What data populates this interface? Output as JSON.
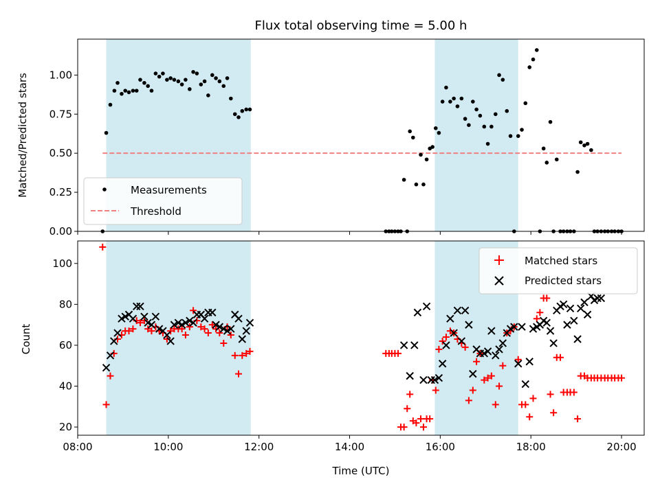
{
  "chart_data": {
    "title": "Flux total observing time = 5.00 h",
    "type": "scatter",
    "x_unit": "hours UTC",
    "xlabel": "Time (UTC)",
    "x_ticks": [
      8,
      10,
      12,
      14,
      16,
      18,
      20
    ],
    "x_tick_labels": [
      "08:00",
      "10:00",
      "12:00",
      "14:00",
      "16:00",
      "18:00",
      "20:00"
    ],
    "xlim": [
      8.0,
      20.5
    ],
    "shaded_intervals": [
      [
        8.63,
        11.82
      ],
      [
        15.88,
        17.72
      ]
    ],
    "shade_color": "#add8e6",
    "panels": [
      {
        "ylabel": "Matched/Predicted stars",
        "ylim": [
          0,
          1.23
        ],
        "y_ticks": [
          0,
          0.25,
          0.5,
          0.75,
          1.0
        ],
        "y_tick_labels": [
          "0.00",
          "0.25",
          "0.50",
          "0.75",
          "1.00"
        ],
        "legend_position": "lower-left",
        "threshold": {
          "name": "Threshold",
          "value": 0.5,
          "x_range": [
            8.55,
            20.0
          ],
          "color": "#f08080"
        },
        "series": [
          {
            "name": "Measurements",
            "color": "#000000",
            "marker": "dot",
            "x": [
              8.55,
              8.63,
              8.72,
              8.81,
              8.88,
              8.97,
              9.05,
              9.13,
              9.22,
              9.3,
              9.38,
              9.47,
              9.55,
              9.63,
              9.72,
              9.8,
              9.88,
              9.97,
              10.05,
              10.13,
              10.22,
              10.3,
              10.38,
              10.47,
              10.55,
              10.63,
              10.72,
              10.8,
              10.88,
              10.97,
              11.05,
              11.13,
              11.22,
              11.3,
              11.38,
              11.47,
              11.55,
              11.63,
              11.72,
              11.8,
              14.8,
              14.87,
              14.93,
              15.0,
              15.07,
              15.13,
              15.2,
              15.27,
              15.33,
              15.4,
              15.47,
              15.57,
              15.63,
              15.7,
              15.77,
              15.83,
              15.9,
              15.97,
              16.05,
              16.13,
              16.22,
              16.3,
              16.38,
              16.47,
              16.55,
              16.63,
              16.72,
              16.8,
              16.88,
              16.97,
              17.05,
              17.13,
              17.22,
              17.3,
              17.38,
              17.47,
              17.55,
              17.63,
              17.72,
              17.8,
              17.88,
              17.97,
              18.05,
              18.13,
              18.2,
              18.28,
              18.35,
              18.43,
              18.5,
              18.57,
              18.65,
              18.72,
              18.8,
              18.87,
              18.95,
              19.03,
              19.1,
              19.18,
              19.25,
              19.33,
              19.4,
              19.47,
              19.55,
              19.63,
              19.7,
              19.78,
              19.85,
              19.93,
              20.0
            ],
            "y": [
              0.0,
              0.63,
              0.81,
              0.9,
              0.95,
              0.88,
              0.9,
              0.89,
              0.9,
              0.9,
              0.97,
              0.95,
              0.93,
              0.9,
              1.01,
              0.99,
              1.01,
              0.97,
              0.98,
              0.97,
              0.96,
              0.94,
              0.97,
              0.91,
              1.02,
              1.01,
              0.94,
              0.96,
              0.87,
              1.0,
              0.98,
              0.96,
              0.93,
              0.98,
              0.85,
              0.75,
              0.73,
              0.77,
              0.78,
              0.78,
              0.0,
              0.0,
              0.0,
              0.0,
              0.0,
              0.0,
              0.33,
              0.0,
              0.64,
              0.6,
              0.3,
              0.49,
              0.3,
              0.46,
              0.53,
              0.54,
              0.66,
              0.63,
              0.83,
              0.92,
              0.83,
              0.85,
              0.8,
              0.85,
              0.72,
              0.68,
              0.83,
              0.78,
              0.74,
              0.67,
              0.56,
              0.67,
              0.75,
              1.0,
              0.97,
              0.77,
              0.61,
              0.0,
              0.61,
              0.65,
              0.82,
              1.05,
              1.1,
              1.16,
              0.0,
              0.53,
              0.44,
              0.7,
              0.0,
              0.46,
              0.0,
              0.0,
              0.0,
              0.0,
              0.0,
              0.38,
              0.57,
              0.55,
              0.56,
              0.52,
              0.0,
              0.0,
              0.0,
              0.0,
              0.0,
              0.0,
              0.0,
              0.0,
              0.0
            ]
          }
        ]
      },
      {
        "ylabel": "Count",
        "ylim": [
          16,
          111
        ],
        "y_ticks": [
          20,
          40,
          60,
          80,
          100
        ],
        "y_tick_labels": [
          "20",
          "40",
          "60",
          "80",
          "100"
        ],
        "legend_position": "upper-right",
        "series": [
          {
            "name": "Matched stars",
            "color": "#ff0000",
            "marker": "plus",
            "x": [
              8.55,
              8.63,
              8.72,
              8.8,
              8.88,
              8.97,
              9.05,
              9.13,
              9.22,
              9.3,
              9.38,
              9.47,
              9.55,
              9.63,
              9.72,
              9.8,
              9.88,
              9.97,
              10.05,
              10.13,
              10.22,
              10.3,
              10.38,
              10.47,
              10.55,
              10.63,
              10.72,
              10.8,
              10.88,
              10.97,
              11.05,
              11.13,
              11.22,
              11.3,
              11.38,
              11.47,
              11.55,
              11.63,
              11.72,
              11.8,
              14.8,
              14.87,
              14.93,
              15.0,
              15.07,
              15.13,
              15.2,
              15.27,
              15.33,
              15.4,
              15.47,
              15.57,
              15.63,
              15.7,
              15.77,
              15.83,
              15.9,
              15.97,
              16.05,
              16.13,
              16.22,
              16.3,
              16.38,
              16.47,
              16.55,
              16.63,
              16.72,
              16.8,
              16.88,
              16.97,
              17.05,
              17.13,
              17.22,
              17.3,
              17.38,
              17.47,
              17.55,
              17.63,
              17.72,
              17.8,
              17.88,
              17.97,
              18.05,
              18.13,
              18.2,
              18.28,
              18.35,
              18.43,
              18.5,
              18.57,
              18.65,
              18.72,
              18.8,
              18.87,
              18.95,
              19.03,
              19.1,
              19.18,
              19.25,
              19.33,
              19.4,
              19.47,
              19.55,
              19.63,
              19.7,
              19.78,
              19.85,
              19.93,
              20.0
            ],
            "y": [
              108,
              31,
              45,
              56,
              63,
              65,
              67,
              67,
              68,
              72,
              71,
              72,
              68,
              67,
              69,
              67,
              66,
              63,
              67,
              68,
              68,
              68,
              65,
              69,
              77,
              72,
              69,
              68,
              66,
              70,
              68,
              66,
              61,
              69,
              65,
              55,
              46,
              55,
              56,
              57,
              56,
              56,
              56,
              56,
              56,
              20,
              20,
              29,
              36,
              23,
              22,
              24,
              20,
              24,
              24,
              43,
              38,
              58,
              62,
              64,
              67,
              66,
              63,
              61,
              59,
              33,
              38,
              52,
              56,
              43,
              44,
              45,
              31,
              40,
              50,
              66,
              67,
              69,
              53,
              31,
              31,
              25,
              34,
              73,
              76,
              83,
              83,
              36,
              27,
              54,
              54,
              37,
              37,
              37,
              37,
              24,
              45,
              45,
              44,
              44,
              44,
              44,
              44,
              44,
              44,
              44,
              44,
              44,
              44
            ]
          },
          {
            "name": "Predicted stars",
            "color": "#000000",
            "marker": "x",
            "x": [
              8.63,
              8.72,
              8.8,
              8.88,
              8.97,
              9.05,
              9.13,
              9.22,
              9.3,
              9.38,
              9.47,
              9.55,
              9.63,
              9.72,
              9.8,
              9.88,
              9.97,
              10.05,
              10.13,
              10.22,
              10.3,
              10.38,
              10.47,
              10.55,
              10.63,
              10.72,
              10.8,
              10.88,
              10.97,
              11.05,
              11.13,
              11.22,
              11.3,
              11.38,
              11.47,
              11.55,
              11.63,
              11.72,
              11.8,
              15.2,
              15.33,
              15.43,
              15.5,
              15.63,
              15.7,
              15.8,
              15.88,
              15.97,
              16.05,
              16.13,
              16.22,
              16.3,
              16.38,
              16.47,
              16.55,
              16.63,
              16.72,
              16.8,
              16.88,
              16.97,
              17.05,
              17.13,
              17.22,
              17.3,
              17.38,
              17.47,
              17.55,
              17.63,
              17.72,
              17.8,
              17.88,
              17.97,
              18.05,
              18.13,
              18.2,
              18.28,
              18.35,
              18.43,
              18.5,
              18.57,
              18.65,
              18.72,
              18.8,
              18.87,
              18.95,
              19.03,
              19.1,
              19.18,
              19.25,
              19.33,
              19.4,
              19.47,
              19.55
            ],
            "y": [
              49,
              55,
              62,
              66,
              73,
              74,
              75,
              73,
              79,
              79,
              74,
              71,
              70,
              74,
              68,
              67,
              65,
              62,
              70,
              71,
              70,
              71,
              72,
              71,
              75,
              75,
              73,
              76,
              76,
              70,
              69,
              68,
              67,
              68,
              75,
              73,
              63,
              67,
              71,
              60,
              45,
              60,
              76,
              43,
              79,
              43,
              43,
              44,
              51,
              60,
              73,
              66,
              77,
              62,
              77,
              70,
              46,
              58,
              56,
              56,
              57,
              67,
              55,
              58,
              61,
              66,
              68,
              69,
              51,
              69,
              41,
              52,
              68,
              69,
              70,
              72,
              71,
              67,
              61,
              77,
              79,
              80,
              70,
              78,
              72,
              63,
              78,
              81,
              75,
              84,
              82,
              83,
              83
            ]
          }
        ]
      }
    ]
  }
}
